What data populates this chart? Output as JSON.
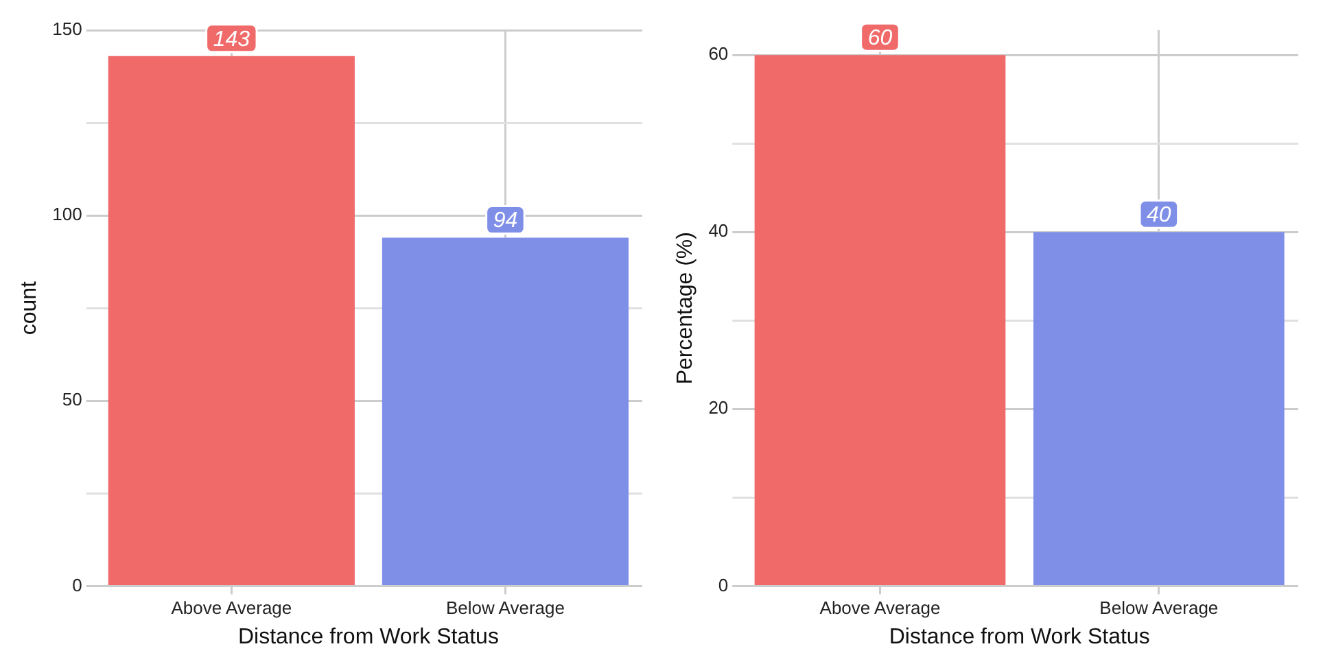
{
  "chart_data": [
    {
      "type": "bar",
      "categories": [
        "Above Average",
        "Below Average"
      ],
      "values": [
        143,
        94
      ],
      "colors": [
        "#f06a6a",
        "#7f8fe8"
      ],
      "xlabel": "Distance from Work Status",
      "ylabel": "count",
      "ylim": [
        0,
        150
      ],
      "yticks": [
        0,
        {
          "value": 25,
          "label": null
        },
        50,
        {
          "value": 75,
          "label": null
        },
        100,
        {
          "value": 125,
          "label": null
        },
        150
      ],
      "grid": true,
      "data_labels": true
    },
    {
      "type": "bar",
      "categories": [
        "Above Average",
        "Below Average"
      ],
      "values": [
        60,
        40
      ],
      "colors": [
        "#f06a6a",
        "#7f8fe8"
      ],
      "xlabel": "Distance from Work Status",
      "ylabel": "Percentage (%)",
      "ylim": [
        0,
        62.8
      ],
      "yticks": [
        0,
        {
          "value": 10,
          "label": null
        },
        20,
        {
          "value": 30,
          "label": null
        },
        40,
        {
          "value": 50,
          "label": null
        },
        60
      ],
      "grid": true,
      "data_labels": true
    }
  ]
}
